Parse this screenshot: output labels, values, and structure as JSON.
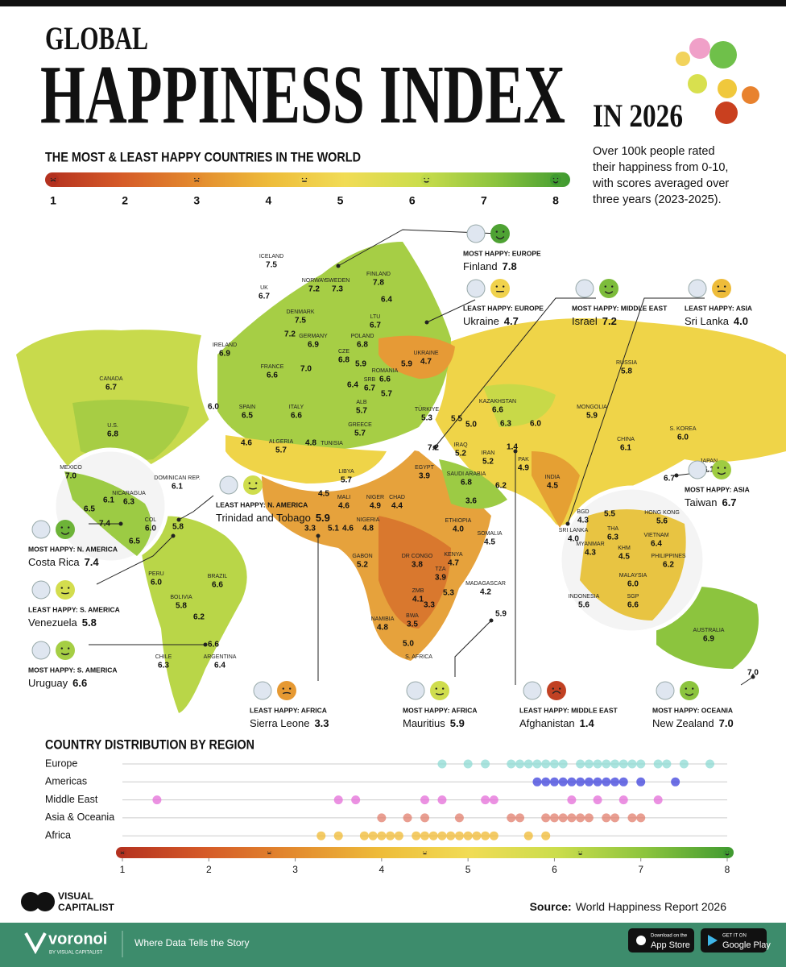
{
  "header": {
    "kicker": "GLOBAL",
    "title": "HAPPINESS INDEX",
    "year": "IN 2026",
    "subtitle": "THE MOST & LEAST HAPPY COUNTRIES IN THE WORLD",
    "description": [
      "Over 100k people rated",
      "their happiness from 0-10,",
      "with scores averaged over",
      "three years (2023-2025)."
    ]
  },
  "scale": {
    "xlim": [
      1,
      8
    ],
    "ticks": [
      1,
      2,
      3,
      4,
      5,
      6,
      7,
      8
    ],
    "colors": [
      "#b3301f",
      "#d55a28",
      "#e38a2e",
      "#eebc3a",
      "#f1dc55",
      "#cbdd4c",
      "#8cc43e",
      "#3f9a30"
    ]
  },
  "map_labels": [
    {
      "name": "ICELAND",
      "value": 7.5
    },
    {
      "name": "UK",
      "value": 6.7
    },
    {
      "name": "NORWAY",
      "value": 7.2
    },
    {
      "name": "SWEDEN",
      "value": 7.3
    },
    {
      "name": "FINLAND",
      "value": 7.8
    },
    {
      "name": "DENMARK",
      "value": 7.5
    },
    {
      "name": "LTU",
      "value": 6.7
    },
    {
      "value": 6.4
    },
    {
      "name": "IRELAND",
      "value": 6.9
    },
    {
      "name": "GERMANY",
      "value": 6.9
    },
    {
      "name": "POLAND",
      "value": 6.8
    },
    {
      "value": 7.2
    },
    {
      "name": "CZE",
      "value": 6.8
    },
    {
      "name": "UKRAINE",
      "value": 4.7
    },
    {
      "name": "FRANCE",
      "value": 6.6
    },
    {
      "value": 7.0,
      "value_label": "7.0"
    },
    {
      "name": "ROMANIA",
      "value": 6.6
    },
    {
      "value": 5.9
    },
    {
      "value": 5.9
    },
    {
      "name": "SRB",
      "value": 6.7
    },
    {
      "value": 6.4
    },
    {
      "name": "ALB",
      "value": 5.7
    },
    {
      "value": 5.7
    },
    {
      "value": 6.0,
      "value_label": "6.0"
    },
    {
      "name": "SPAIN",
      "value": 6.5
    },
    {
      "name": "ITALY",
      "value": 6.6
    },
    {
      "name": "GREECE",
      "value": 5.7
    },
    {
      "name": "TÜRKIYE",
      "value": 5.3
    },
    {
      "name": "CANADA",
      "value": 6.7
    },
    {
      "name": "U.S.",
      "value": 6.8
    },
    {
      "name": "MEXICO",
      "value": 7.0,
      "value_label": "7.0"
    },
    {
      "name": "NICARAGUA",
      "value": 6.3
    },
    {
      "value": 6.1
    },
    {
      "value": 6.5
    },
    {
      "value": 7.4
    },
    {
      "name": "COL",
      "value": 6.0,
      "value_label": "6.0"
    },
    {
      "value": 6.5
    },
    {
      "value": 5.8
    },
    {
      "name": "DOMINICAN REP.",
      "value": 6.1
    },
    {
      "name": "PERU",
      "value": 6.0,
      "value_label": "6.0"
    },
    {
      "name": "BOLIVIA",
      "value": 5.8
    },
    {
      "value": 6.2
    },
    {
      "name": "BRAZIL",
      "value": 6.6
    },
    {
      "name": "CHILE",
      "value": 6.3
    },
    {
      "name": "ARGENTINA",
      "value": 6.4
    },
    {
      "value": 6.6
    },
    {
      "name": "ALGERIA",
      "value": 5.7
    },
    {
      "value": 4.6
    },
    {
      "value": 4.8
    },
    {
      "name": "TUNISIA"
    },
    {
      "name": "LIBYA",
      "value": 5.7
    },
    {
      "name": "EGYPT",
      "value": 3.9
    },
    {
      "value": 7.2
    },
    {
      "name": "IRAQ",
      "value": 5.2
    },
    {
      "name": "IRAN",
      "value": 5.2
    },
    {
      "value": 5.5
    },
    {
      "value": 5.0,
      "value_label": "5.0"
    },
    {
      "name": "SAUDI ARABIA",
      "value": 6.8
    },
    {
      "value": 6.2
    },
    {
      "value": 3.6
    },
    {
      "name": "KAZAKHSTAN",
      "value": 6.6
    },
    {
      "value": 6.3
    },
    {
      "value": 6.0,
      "value_label": "6.0"
    },
    {
      "name": "MONGOLIA",
      "value": 5.9
    },
    {
      "name": "RUSSIA",
      "value": 5.8
    },
    {
      "name": "CHINA",
      "value": 6.1
    },
    {
      "name": "S. KOREA",
      "value": 6.0,
      "value_label": "6.0"
    },
    {
      "name": "JAPAN",
      "value": 6.1
    },
    {
      "value": 6.7
    },
    {
      "name": "PAK",
      "value": 4.9
    },
    {
      "value": 1.4
    },
    {
      "name": "INDIA",
      "value": 4.5
    },
    {
      "name": "BGD",
      "value": 4.3
    },
    {
      "name": "SRI LANKA",
      "value": 4.0,
      "value_label": "4.0"
    },
    {
      "value": 4.5
    },
    {
      "name": "MALI",
      "value": 4.6
    },
    {
      "name": "NIGER",
      "value": 4.9
    },
    {
      "name": "CHAD",
      "value": 4.4
    },
    {
      "name": "NIGERIA",
      "value": 4.8
    },
    {
      "value": 3.3
    },
    {
      "value": 5.1
    },
    {
      "value": 4.6
    },
    {
      "name": "ETHIOPIA",
      "value": 4.0,
      "value_label": "4.0"
    },
    {
      "name": "SOMALIA",
      "value": 4.5
    },
    {
      "name": "KENYA",
      "value": 4.7
    },
    {
      "name": "DR CONGO",
      "value": 3.8
    },
    {
      "name": "GABON",
      "value": 5.2
    },
    {
      "name": "TZA",
      "value": 3.9
    },
    {
      "name": "ZMB",
      "value": 4.1
    },
    {
      "value": 3.3
    },
    {
      "name": "BWA",
      "value": 3.5
    },
    {
      "value": 5.3
    },
    {
      "name": "MADAGASCAR",
      "value": 4.2
    },
    {
      "value": 5.9
    },
    {
      "name": "NAMIBIA",
      "value": 4.8
    },
    {
      "value": 5.0,
      "value_label": "5.0"
    },
    {
      "name": "S. AFRICA"
    },
    {
      "name": "HONG KONG",
      "value": 5.6
    },
    {
      "value": 5.5
    },
    {
      "name": "THA",
      "value": 6.3
    },
    {
      "name": "KHM",
      "value": 4.5
    },
    {
      "name": "VIETNAM",
      "value": 6.4
    },
    {
      "name": "MYANMAR",
      "value": 4.3
    },
    {
      "name": "PHILIPPINES",
      "value": 6.2
    },
    {
      "name": "MALAYSIA",
      "value": 6.0,
      "value_label": "6.0"
    },
    {
      "name": "SGP",
      "value": 6.6
    },
    {
      "name": "INDONESIA",
      "value": 5.6
    },
    {
      "name": "AUSTRALIA",
      "value": 6.9
    },
    {
      "value": 7.0,
      "value_label": "7.0"
    }
  ],
  "callouts": [
    {
      "heading": "MOST HAPPY: EUROPE",
      "country": "Finland",
      "value": 7.8
    },
    {
      "heading": "LEAST HAPPY: EUROPE",
      "country": "Ukraine",
      "value": 4.7
    },
    {
      "heading": "MOST HAPPY: MIDDLE EAST",
      "country": "Israel",
      "value": 7.2
    },
    {
      "heading": "LEAST HAPPY: ASIA",
      "country": "Sri Lanka",
      "value": 4.0,
      "value_label": "4.0"
    },
    {
      "heading": "MOST HAPPY: ASIA",
      "country": "Taiwan",
      "value": 6.7
    },
    {
      "heading": "LEAST HAPPY: N. AMERICA",
      "country": "Trinidad and Tobago",
      "value": 5.9
    },
    {
      "heading": "MOST HAPPY: N. AMERICA",
      "country": "Costa Rica",
      "value": 7.4
    },
    {
      "heading": "LEAST HAPPY: S. AMERICA",
      "country": "Venezuela",
      "value": 5.8
    },
    {
      "heading": "MOST HAPPY: S. AMERICA",
      "country": "Uruguay",
      "value": 6.6
    },
    {
      "heading": "LEAST HAPPY: AFRICA",
      "country": "Sierra Leone",
      "value": 3.3
    },
    {
      "heading": "MOST HAPPY: AFRICA",
      "country": "Mauritius",
      "value": 5.9
    },
    {
      "heading": "LEAST HAPPY: MIDDLE EAST",
      "country": "Afghanistan",
      "value": 1.4
    },
    {
      "heading": "MOST HAPPY: OCEANIA",
      "country": "New Zealand",
      "value": 7.0,
      "value_label": "7.0"
    }
  ],
  "chart_data": {
    "type": "strip",
    "title": "COUNTRY DISTRIBUTION BY REGION",
    "xlim": [
      1,
      8
    ],
    "xticks": [
      1,
      2,
      3,
      4,
      5,
      6,
      7,
      8
    ],
    "series": [
      {
        "name": "Europe",
        "color": "#8edbd4",
        "values": [
          4.7,
          5.0,
          5.2,
          5.5,
          5.6,
          5.7,
          5.8,
          5.9,
          6.0,
          6.1,
          6.3,
          6.4,
          6.5,
          6.6,
          6.7,
          6.8,
          6.9,
          7.0,
          7.2,
          7.3,
          7.5,
          7.8
        ]
      },
      {
        "name": "Americas",
        "color": "#3c40dc",
        "values": [
          5.8,
          5.9,
          6.0,
          6.1,
          6.2,
          6.3,
          6.4,
          6.5,
          6.6,
          6.7,
          6.8,
          7.0,
          7.4
        ]
      },
      {
        "name": "Middle East",
        "color": "#e46cd8",
        "values": [
          1.4,
          3.5,
          3.7,
          4.5,
          4.7,
          5.2,
          5.3,
          6.2,
          6.5,
          6.8,
          7.2
        ]
      },
      {
        "name": "Asia & Oceania",
        "color": "#e27e6c",
        "values": [
          4.0,
          4.3,
          4.5,
          4.9,
          5.5,
          5.6,
          5.9,
          6.0,
          6.1,
          6.2,
          6.3,
          6.4,
          6.6,
          6.7,
          6.9,
          7.0
        ]
      },
      {
        "name": "Africa",
        "color": "#f0b932",
        "values": [
          3.3,
          3.5,
          3.8,
          3.9,
          4.0,
          4.1,
          4.2,
          4.4,
          4.5,
          4.6,
          4.7,
          4.8,
          4.9,
          5.0,
          5.1,
          5.2,
          5.3,
          5.7,
          5.9
        ]
      }
    ]
  },
  "footer": {
    "logo": [
      "VISUAL",
      "CAPITALIST"
    ],
    "source_label": "Source:",
    "source": "World Happiness Report 2026",
    "brand": "voronoi",
    "brand_sub": "BY VISUAL CAPITALIST",
    "tagline": "Where Data Tells the Story",
    "app_store": [
      "Download on the",
      "App Store"
    ],
    "google_play": [
      "GET IT ON",
      "Google Play"
    ]
  }
}
